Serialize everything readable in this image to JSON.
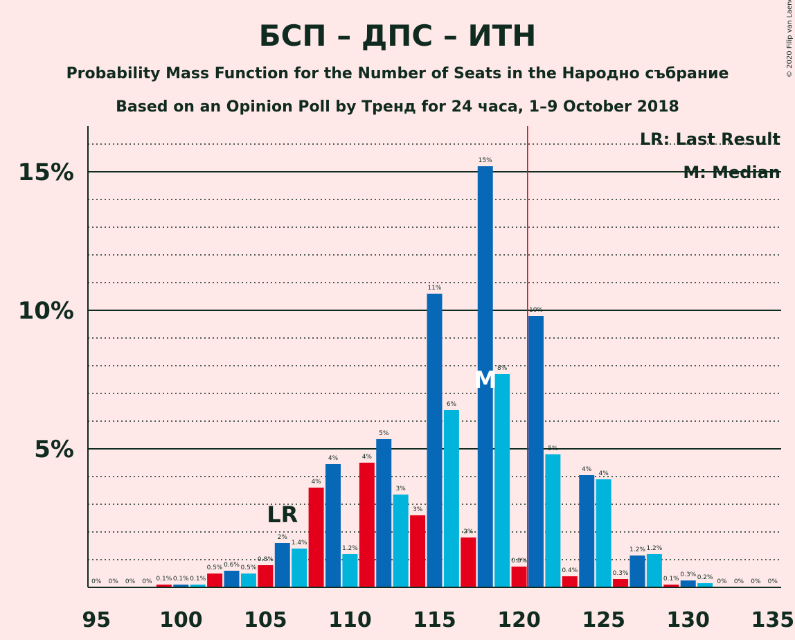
{
  "chart_data": {
    "type": "bar",
    "title": "БСП – ДПС – ИТН",
    "subtitle": "Probability Mass Function for the Number of Seats in the Народно събрание",
    "subtitle2": "Based on an Opinion Poll by Тренд for 24 часа, 1–9 October 2018",
    "copyright": "© 2020 Filip van Laenen",
    "legend": [
      "LR: Last Result",
      "M: Median"
    ],
    "x": [
      95,
      96,
      97,
      98,
      99,
      100,
      101,
      102,
      103,
      104,
      105,
      106,
      107,
      108,
      109,
      110,
      111,
      112,
      113,
      114,
      115,
      116,
      117,
      118,
      119,
      120,
      121,
      122,
      123,
      124,
      125,
      126,
      127,
      128,
      129,
      130,
      131,
      132,
      133,
      134,
      135
    ],
    "values": [
      0,
      0,
      0,
      0,
      0.1,
      0.1,
      0.1,
      0.5,
      0.6,
      0.5,
      0.8,
      1.6,
      1.4,
      3.6,
      4.45,
      1.2,
      4.5,
      5.35,
      3.35,
      2.6,
      10.6,
      6.4,
      1.8,
      15.2,
      7.7,
      0.75,
      9.8,
      4.8,
      0.4,
      4.05,
      3.9,
      0.3,
      1.15,
      1.2,
      0.1,
      0.25,
      0.15,
      0,
      0,
      0,
      0
    ],
    "value_labels": [
      "0%",
      "0%",
      "0%",
      "0%",
      "0.1%",
      "0.1%",
      "0.1%",
      "0.5%",
      "0.6%",
      "0.5%",
      "0.8%",
      "2%",
      "1.4%",
      "4%",
      "4%",
      "1.2%",
      "4%",
      "5%",
      "3%",
      "3%",
      "11%",
      "6%",
      "2%",
      "15%",
      "8%",
      "0.8%",
      "10%",
      "5%",
      "0.4%",
      "4%",
      "4%",
      "0.3%",
      "1.2%",
      "1.2%",
      "0.1%",
      "0.3%",
      "0.2%",
      "0%",
      "0%",
      "0%",
      "0%"
    ],
    "colors": [
      "#e4001b",
      "#e4001b",
      "#0868b8",
      "#00b4dc",
      "#e4001b",
      "#0868b8",
      "#00b4dc",
      "#e4001b",
      "#0868b8",
      "#00b4dc",
      "#e4001b",
      "#0868b8",
      "#00b4dc",
      "#e4001b",
      "#0868b8",
      "#00b4dc",
      "#e4001b",
      "#0868b8",
      "#00b4dc",
      "#e4001b",
      "#0868b8",
      "#00b4dc",
      "#e4001b",
      "#0868b8",
      "#00b4dc",
      "#e4001b",
      "#0868b8",
      "#00b4dc",
      "#e4001b",
      "#0868b8",
      "#00b4dc",
      "#e4001b",
      "#0868b8",
      "#00b4dc",
      "#e4001b",
      "#0868b8",
      "#00b4dc",
      "#e4001b",
      "#0868b8",
      "#00b4dc",
      "#e4001b"
    ],
    "xlim": [
      94.5,
      135.5
    ],
    "xticks": [
      95,
      100,
      105,
      110,
      115,
      120,
      125,
      130,
      135
    ],
    "ylim": [
      0,
      16.65
    ],
    "yticks": [
      {
        "value": 5,
        "label": "5%"
      },
      {
        "value": 10,
        "label": "10%"
      },
      {
        "value": 15,
        "label": "15%"
      }
    ],
    "minor_yticks": [
      1,
      2,
      3,
      4,
      6,
      7,
      8,
      9,
      11,
      12,
      13,
      14,
      16
    ],
    "majority_x": 120.5,
    "last_result": {
      "x": 106,
      "label": "LR"
    },
    "median": {
      "x": 118,
      "label": "M"
    }
  }
}
